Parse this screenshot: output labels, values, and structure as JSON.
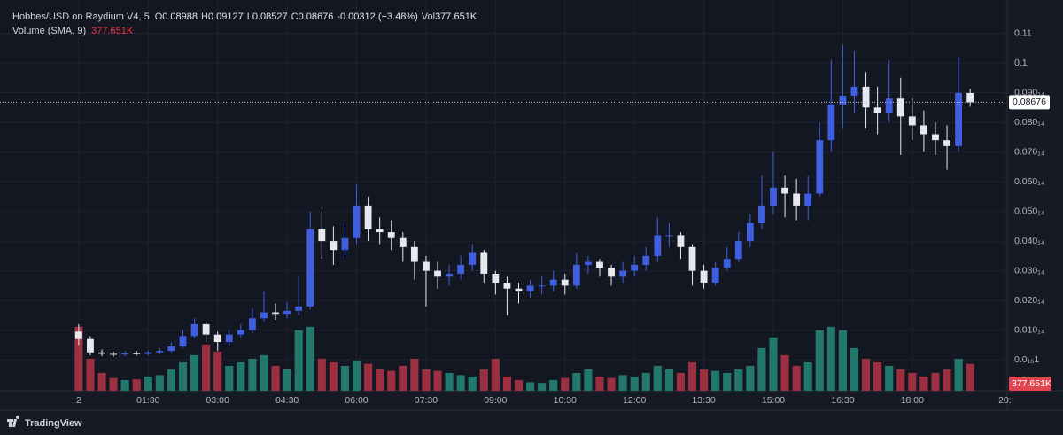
{
  "chart_data": {
    "type": "candlestick",
    "legend": {
      "symbol": "Hobbes/USD on Raydium V4, 5",
      "ohlc_labels": [
        "O",
        "H",
        "L",
        "C"
      ],
      "change": "-0.00312 (−3.48%)",
      "vol_label": "Vol",
      "volume_label": "377.651K",
      "indicator": "Volume (SMA, 9)"
    },
    "footer": "TradingView",
    "x": [
      0,
      15,
      30,
      45,
      60,
      75,
      90,
      105,
      120,
      135,
      150,
      165,
      180,
      195,
      210,
      225,
      240,
      255,
      270,
      285,
      300,
      315,
      330,
      345,
      360,
      375,
      390,
      405,
      420,
      435,
      450,
      465,
      480,
      495,
      510,
      525,
      540,
      555,
      570,
      585,
      600,
      615,
      630,
      645,
      660,
      675,
      690,
      705,
      720,
      735,
      750,
      765,
      780,
      795,
      810,
      825,
      840,
      855,
      870,
      885,
      900,
      915,
      930,
      945,
      960,
      975,
      990,
      1005,
      1020,
      1035,
      1050,
      1065,
      1080,
      1095,
      1110,
      1125,
      1140,
      1155
    ],
    "open": [
      0.0095,
      0.007,
      0.0025,
      0.002,
      0.0018,
      0.0022,
      0.002,
      0.0025,
      0.003,
      0.0045,
      0.008,
      0.012,
      0.0085,
      0.006,
      0.0085,
      0.01,
      0.014,
      0.016,
      0.0155,
      0.0165,
      0.018,
      0.044,
      0.04,
      0.037,
      0.041,
      0.052,
      0.044,
      0.043,
      0.041,
      0.038,
      0.033,
      0.03,
      0.028,
      0.029,
      0.032,
      0.036,
      0.029,
      0.026,
      0.024,
      0.023,
      0.025,
      0.025,
      0.027,
      0.025,
      0.032,
      0.033,
      0.031,
      0.028,
      0.03,
      0.032,
      0.035,
      0.042,
      0.042,
      0.038,
      0.03,
      0.026,
      0.031,
      0.034,
      0.04,
      0.046,
      0.052,
      0.058,
      0.056,
      0.052,
      0.056,
      0.074,
      0.086,
      0.089,
      0.092,
      0.085,
      0.083,
      0.088,
      0.082,
      0.079,
      0.076,
      0.074,
      0.072,
      0.08988
    ],
    "high": [
      0.012,
      0.008,
      0.0035,
      0.0028,
      0.003,
      0.003,
      0.0032,
      0.0038,
      0.006,
      0.01,
      0.014,
      0.013,
      0.0095,
      0.01,
      0.012,
      0.0175,
      0.023,
      0.019,
      0.0195,
      0.028,
      0.05,
      0.05,
      0.045,
      0.046,
      0.059,
      0.055,
      0.048,
      0.047,
      0.043,
      0.04,
      0.035,
      0.033,
      0.032,
      0.035,
      0.039,
      0.037,
      0.03,
      0.028,
      0.026,
      0.027,
      0.028,
      0.03,
      0.029,
      0.036,
      0.035,
      0.034,
      0.032,
      0.033,
      0.035,
      0.038,
      0.048,
      0.046,
      0.043,
      0.039,
      0.032,
      0.033,
      0.038,
      0.043,
      0.049,
      0.062,
      0.07,
      0.062,
      0.061,
      0.062,
      0.08,
      0.101,
      0.106,
      0.104,
      0.097,
      0.092,
      0.101,
      0.095,
      0.088,
      0.084,
      0.08,
      0.079,
      0.102,
      0.09127
    ],
    "low": [
      0.005,
      0.0015,
      0.0012,
      0.001,
      0.0012,
      0.0014,
      0.0015,
      0.002,
      0.0025,
      0.004,
      0.0075,
      0.006,
      0.003,
      0.0045,
      0.0075,
      0.009,
      0.013,
      0.0135,
      0.014,
      0.015,
      0.017,
      0.034,
      0.032,
      0.034,
      0.039,
      0.04,
      0.039,
      0.037,
      0.033,
      0.027,
      0.018,
      0.024,
      0.025,
      0.027,
      0.03,
      0.026,
      0.022,
      0.015,
      0.019,
      0.021,
      0.022,
      0.023,
      0.022,
      0.024,
      0.029,
      0.028,
      0.025,
      0.026,
      0.028,
      0.03,
      0.033,
      0.038,
      0.034,
      0.025,
      0.024,
      0.025,
      0.03,
      0.033,
      0.038,
      0.044,
      0.049,
      0.048,
      0.047,
      0.047,
      0.055,
      0.07,
      0.078,
      0.083,
      0.078,
      0.076,
      0.08,
      0.069,
      0.074,
      0.07,
      0.069,
      0.064,
      0.07,
      0.08527
    ],
    "close": [
      0.007,
      0.0025,
      0.002,
      0.0018,
      0.0022,
      0.002,
      0.0025,
      0.003,
      0.0045,
      0.008,
      0.012,
      0.0085,
      0.006,
      0.0085,
      0.01,
      0.014,
      0.016,
      0.0155,
      0.0165,
      0.018,
      0.044,
      0.04,
      0.037,
      0.041,
      0.052,
      0.044,
      0.043,
      0.041,
      0.038,
      0.033,
      0.03,
      0.028,
      0.029,
      0.032,
      0.036,
      0.029,
      0.026,
      0.024,
      0.023,
      0.025,
      0.025,
      0.027,
      0.025,
      0.032,
      0.033,
      0.031,
      0.028,
      0.03,
      0.032,
      0.035,
      0.042,
      0.042,
      0.038,
      0.03,
      0.026,
      0.031,
      0.034,
      0.04,
      0.046,
      0.052,
      0.058,
      0.056,
      0.052,
      0.056,
      0.074,
      0.086,
      0.089,
      0.092,
      0.085,
      0.083,
      0.088,
      0.082,
      0.079,
      0.076,
      0.074,
      0.072,
      0.0899,
      0.08676
    ],
    "volume": [
      900000,
      450000,
      250000,
      180000,
      150000,
      160000,
      200000,
      220000,
      300000,
      400000,
      500000,
      650000,
      550000,
      350000,
      400000,
      450000,
      500000,
      350000,
      300000,
      850000,
      900000,
      450000,
      400000,
      350000,
      420000,
      380000,
      300000,
      280000,
      350000,
      450000,
      300000,
      280000,
      250000,
      220000,
      200000,
      300000,
      450000,
      200000,
      150000,
      120000,
      110000,
      150000,
      180000,
      250000,
      300000,
      200000,
      180000,
      220000,
      200000,
      250000,
      350000,
      300000,
      250000,
      400000,
      300000,
      280000,
      250000,
      300000,
      350000,
      600000,
      750000,
      500000,
      350000,
      400000,
      850000,
      900000,
      850000,
      600000,
      450000,
      400000,
      350000,
      300000,
      250000,
      200000,
      250000,
      300000,
      450000,
      377651
    ],
    "up_color": "#3f5fe0",
    "down_color": "#e6e8ee",
    "volume_up_color": "#22786b",
    "volume_down_color": "#9c2f40",
    "xlim": [
      -102,
      1203
    ],
    "ylim": [
      -0.0104,
      0.1212
    ],
    "y2lim": [
      0,
      5500000
    ],
    "xticks": [
      {
        "value": 0,
        "label": "2"
      },
      {
        "value": 90,
        "label": "01:30"
      },
      {
        "value": 180,
        "label": "03:00"
      },
      {
        "value": 270,
        "label": "04:30"
      },
      {
        "value": 360,
        "label": "06:00"
      },
      {
        "value": 450,
        "label": "07:30"
      },
      {
        "value": 540,
        "label": "09:00"
      },
      {
        "value": 630,
        "label": "10:30"
      },
      {
        "value": 720,
        "label": "12:00"
      },
      {
        "value": 810,
        "label": "13:30"
      },
      {
        "value": 900,
        "label": "15:00"
      },
      {
        "value": 990,
        "label": "16:30"
      },
      {
        "value": 1080,
        "label": "18:00"
      },
      {
        "value": 1200,
        "label": "20:"
      }
    ],
    "yticks": [
      0.11,
      0.1,
      {
        "value": 0.09,
        "label": "0.090₁₄"
      },
      {
        "value": 0.08,
        "label": "0.080₁₄"
      },
      {
        "value": 0.07,
        "label": "0.070₁₄"
      },
      {
        "value": 0.06,
        "label": "0.060₁₄"
      },
      {
        "value": 0.05,
        "label": "0.050₁₄"
      },
      {
        "value": 0.04,
        "label": "0.040₁₄"
      },
      {
        "value": 0.03,
        "label": "0.030₁₄"
      },
      {
        "value": 0.02,
        "label": "0.020₁₄"
      },
      {
        "value": 0.01,
        "label": "0.010₁₄"
      },
      {
        "value": 1e-17,
        "label": "0.0₁₆1"
      }
    ],
    "grid": true
  }
}
